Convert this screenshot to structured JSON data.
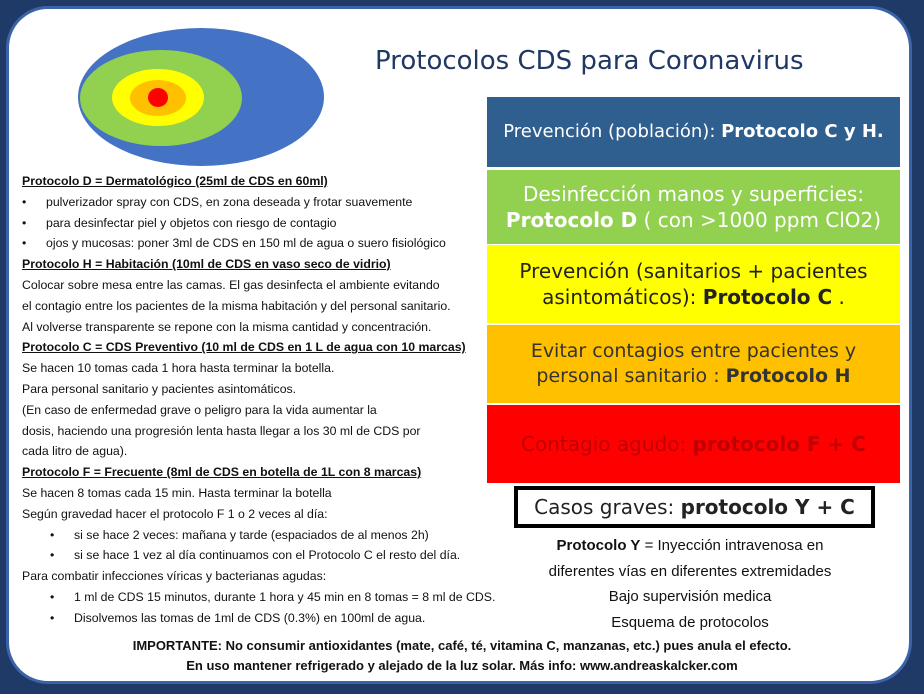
{
  "title": "Protocolos CDS para Coronavirus",
  "colors": {
    "frame": "#1f3a66",
    "prevention": "#2f5f8f",
    "disinfection": "#92d050",
    "sanitarios": "#ffff00",
    "contagios": "#ffc000",
    "agudo": "#ff0000",
    "title": "#1f3864"
  },
  "boxes": [
    {
      "text": "Prevención (población): ",
      "bold": "Protocolo C y H."
    },
    {
      "text": "Desinfección manos y superficies: ",
      "bold": "Protocolo D",
      "after": " ( con >1000 ppm ClO2)"
    },
    {
      "text": "Prevención (sanitarios + pacientes asintomáticos): ",
      "bold": "Protocolo C",
      "after": " ."
    },
    {
      "text": "Evitar contagios entre pacientes y personal sanitario : ",
      "bold": "Protocolo H"
    },
    {
      "text": "Contagio agudo: ",
      "bold": "protocolo F + C"
    },
    {
      "text": "Casos graves: ",
      "bold": "protocolo Y + C"
    }
  ],
  "left": [
    {
      "t": "h",
      "text": "Protocolo D = Dermatológico (25ml de CDS en 60ml)"
    },
    {
      "t": "b1",
      "text": "pulverizador spray con CDS, en zona deseada y frotar suavemente"
    },
    {
      "t": "b1",
      "text": "para desinfectar piel y objetos con riesgo de contagio"
    },
    {
      "t": "b1",
      "text": "ojos y mucosas: poner 3ml de CDS en 150 ml de agua o suero fisiológico"
    },
    {
      "t": "h",
      "text": "Protocolo H = Habitación (10ml de CDS en vaso seco de vidrio)"
    },
    {
      "t": "p",
      "text": "Colocar sobre mesa entre las camas. El gas desinfecta el ambiente evitando"
    },
    {
      "t": "p",
      "text": " el contagio entre los pacientes de la misma habitación y del personal sanitario."
    },
    {
      "t": "p",
      "text": "Al volverse transparente se repone con la misma cantidad y concentración."
    },
    {
      "t": "h",
      "text": "Protocolo C = CDS Preventivo (10 ml de CDS en 1 L de agua con 10 marcas)"
    },
    {
      "t": "p",
      "text": "Se hacen 10 tomas cada 1 hora hasta terminar la botella."
    },
    {
      "t": "p",
      "text": "Para personal sanitario y pacientes asintomáticos."
    },
    {
      "t": "p",
      "text": "(En caso de enfermedad grave o peligro para la vida aumentar la"
    },
    {
      "t": "p",
      "text": "dosis, haciendo una progresión lenta hasta llegar a los 30 ml de CDS por"
    },
    {
      "t": "p",
      "text": "cada litro de agua)."
    },
    {
      "t": "h",
      "text": "Protocolo F = Frecuente (8ml de CDS en botella de 1L con 8 marcas)"
    },
    {
      "t": "p",
      "text": "Se hacen 8 tomas cada 15 min. Hasta terminar la botella"
    },
    {
      "t": "p",
      "text": "Según gravedad hacer el protocolo F 1 o 2 veces al día:"
    },
    {
      "t": "b2",
      "text": "si se hace 2 veces: mañana y tarde (espaciados de al menos 2h)"
    },
    {
      "t": "b2",
      "text": "si se hace 1 vez al día continuamos con el Protocolo C el resto del día."
    },
    {
      "t": "p",
      "text": "Para combatir infecciones víricas y bacterianas agudas:"
    },
    {
      "t": "b2",
      "text": "1 ml de CDS 15 minutos, durante 1 hora y 45 min en 8 tomas = 8 ml de CDS."
    },
    {
      "t": "b2",
      "text": "Disolvemos las tomas de 1ml de CDS (0.3%) en 100ml de agua."
    }
  ],
  "right_note": {
    "bold": "Protocolo Y",
    "line1": " = Inyección intravenosa en",
    "line2": "diferentes vías en diferentes extremidades",
    "line3": "Bajo supervisión medica",
    "line4": "Esquema de protocolos"
  },
  "footer": {
    "line1": "IMPORTANTE: No consumir antioxidantes  (mate, café, té, vitamina C, manzanas, etc.) pues anula el efecto.",
    "line2": "En uso mantener refrigerado y alejado de la luz solar.  Más info: www.andreaskalcker.com"
  }
}
